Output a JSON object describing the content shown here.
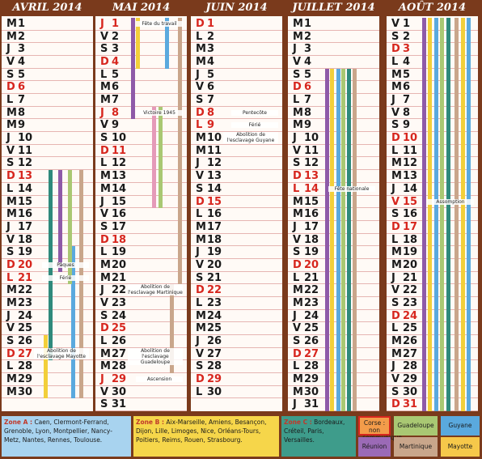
{
  "months": [
    {
      "title": "AVRIL 2014",
      "days": [
        {
          "d": "M",
          "n": 1
        },
        {
          "d": "M",
          "n": 2
        },
        {
          "d": "J",
          "n": 3
        },
        {
          "d": "V",
          "n": 4
        },
        {
          "d": "S",
          "n": 5
        },
        {
          "d": "D",
          "n": 6,
          "red": true
        },
        {
          "d": "L",
          "n": 7
        },
        {
          "d": "M",
          "n": 8
        },
        {
          "d": "M",
          "n": 9
        },
        {
          "d": "J",
          "n": 10
        },
        {
          "d": "V",
          "n": 11
        },
        {
          "d": "S",
          "n": 12
        },
        {
          "d": "D",
          "n": 13,
          "red": true
        },
        {
          "d": "L",
          "n": 14
        },
        {
          "d": "M",
          "n": 15
        },
        {
          "d": "M",
          "n": 16
        },
        {
          "d": "J",
          "n": 17
        },
        {
          "d": "V",
          "n": 18
        },
        {
          "d": "S",
          "n": 19
        },
        {
          "d": "D",
          "n": 20,
          "red": true,
          "note": "Pâques"
        },
        {
          "d": "L",
          "n": 21,
          "red": true,
          "note": "Férié"
        },
        {
          "d": "M",
          "n": 22
        },
        {
          "d": "M",
          "n": 23
        },
        {
          "d": "J",
          "n": 24
        },
        {
          "d": "V",
          "n": 25
        },
        {
          "d": "S",
          "n": 26
        },
        {
          "d": "D",
          "n": 27,
          "red": true,
          "note": "Abolition de l'esclavage Mayotte"
        },
        {
          "d": "L",
          "n": 28
        },
        {
          "d": "M",
          "n": 29
        },
        {
          "d": "M",
          "n": 30
        }
      ]
    },
    {
      "title": "MAI 2014",
      "days": [
        {
          "d": "J",
          "n": 1,
          "red": true,
          "note": "Fête du travail"
        },
        {
          "d": "V",
          "n": 2
        },
        {
          "d": "S",
          "n": 3
        },
        {
          "d": "D",
          "n": 4,
          "red": true
        },
        {
          "d": "L",
          "n": 5
        },
        {
          "d": "M",
          "n": 6
        },
        {
          "d": "M",
          "n": 7
        },
        {
          "d": "J",
          "n": 8,
          "red": true,
          "note": "Victoire 1945"
        },
        {
          "d": "V",
          "n": 9
        },
        {
          "d": "S",
          "n": 10
        },
        {
          "d": "D",
          "n": 11,
          "red": true
        },
        {
          "d": "L",
          "n": 12
        },
        {
          "d": "M",
          "n": 13
        },
        {
          "d": "M",
          "n": 14
        },
        {
          "d": "J",
          "n": 15
        },
        {
          "d": "V",
          "n": 16
        },
        {
          "d": "S",
          "n": 17
        },
        {
          "d": "D",
          "n": 18,
          "red": true
        },
        {
          "d": "L",
          "n": 19
        },
        {
          "d": "M",
          "n": 20
        },
        {
          "d": "M",
          "n": 21
        },
        {
          "d": "J",
          "n": 22,
          "note": "Abolition de l'esclavage Martinique"
        },
        {
          "d": "V",
          "n": 23
        },
        {
          "d": "S",
          "n": 24
        },
        {
          "d": "D",
          "n": 25,
          "red": true
        },
        {
          "d": "L",
          "n": 26
        },
        {
          "d": "M",
          "n": 27,
          "note": "Abolition de l'esclavage Guadeloupe"
        },
        {
          "d": "M",
          "n": 28
        },
        {
          "d": "J",
          "n": 29,
          "red": true,
          "note": "Ascension"
        },
        {
          "d": "V",
          "n": 30
        },
        {
          "d": "S",
          "n": 31
        }
      ]
    },
    {
      "title": "JUIN 2014",
      "days": [
        {
          "d": "D",
          "n": 1,
          "red": true
        },
        {
          "d": "L",
          "n": 2
        },
        {
          "d": "M",
          "n": 3
        },
        {
          "d": "M",
          "n": 4
        },
        {
          "d": "J",
          "n": 5
        },
        {
          "d": "V",
          "n": 6
        },
        {
          "d": "S",
          "n": 7
        },
        {
          "d": "D",
          "n": 8,
          "red": true,
          "note": "Pentecôte"
        },
        {
          "d": "L",
          "n": 9,
          "red": true,
          "note": "Férié"
        },
        {
          "d": "M",
          "n": 10,
          "note": "Abolition de l'esclavage Guyane"
        },
        {
          "d": "M",
          "n": 11
        },
        {
          "d": "J",
          "n": 12
        },
        {
          "d": "V",
          "n": 13
        },
        {
          "d": "S",
          "n": 14
        },
        {
          "d": "D",
          "n": 15,
          "red": true
        },
        {
          "d": "L",
          "n": 16
        },
        {
          "d": "M",
          "n": 17
        },
        {
          "d": "M",
          "n": 18
        },
        {
          "d": "J",
          "n": 19
        },
        {
          "d": "V",
          "n": 20
        },
        {
          "d": "S",
          "n": 21
        },
        {
          "d": "D",
          "n": 22,
          "red": true
        },
        {
          "d": "L",
          "n": 23
        },
        {
          "d": "M",
          "n": 24
        },
        {
          "d": "M",
          "n": 25
        },
        {
          "d": "J",
          "n": 26
        },
        {
          "d": "V",
          "n": 27
        },
        {
          "d": "S",
          "n": 28
        },
        {
          "d": "D",
          "n": 29,
          "red": true
        },
        {
          "d": "L",
          "n": 30
        }
      ]
    },
    {
      "title": "JUILLET 2014",
      "days": [
        {
          "d": "M",
          "n": 1
        },
        {
          "d": "M",
          "n": 2
        },
        {
          "d": "J",
          "n": 3
        },
        {
          "d": "V",
          "n": 4
        },
        {
          "d": "S",
          "n": 5
        },
        {
          "d": "D",
          "n": 6,
          "red": true
        },
        {
          "d": "L",
          "n": 7
        },
        {
          "d": "M",
          "n": 8
        },
        {
          "d": "M",
          "n": 9
        },
        {
          "d": "J",
          "n": 10
        },
        {
          "d": "V",
          "n": 11
        },
        {
          "d": "S",
          "n": 12
        },
        {
          "d": "D",
          "n": 13,
          "red": true
        },
        {
          "d": "L",
          "n": 14,
          "red": true,
          "note": "Fête nationale"
        },
        {
          "d": "M",
          "n": 15
        },
        {
          "d": "M",
          "n": 16
        },
        {
          "d": "J",
          "n": 17
        },
        {
          "d": "V",
          "n": 18
        },
        {
          "d": "S",
          "n": 19
        },
        {
          "d": "D",
          "n": 20,
          "red": true
        },
        {
          "d": "L",
          "n": 21
        },
        {
          "d": "M",
          "n": 22
        },
        {
          "d": "M",
          "n": 23
        },
        {
          "d": "J",
          "n": 24
        },
        {
          "d": "V",
          "n": 25
        },
        {
          "d": "S",
          "n": 26
        },
        {
          "d": "D",
          "n": 27,
          "red": true
        },
        {
          "d": "L",
          "n": 28
        },
        {
          "d": "M",
          "n": 29
        },
        {
          "d": "M",
          "n": 30
        },
        {
          "d": "J",
          "n": 31
        }
      ]
    },
    {
      "title": "AOÛT 2014",
      "days": [
        {
          "d": "V",
          "n": 1
        },
        {
          "d": "S",
          "n": 2
        },
        {
          "d": "D",
          "n": 3,
          "red": true
        },
        {
          "d": "L",
          "n": 4
        },
        {
          "d": "M",
          "n": 5
        },
        {
          "d": "M",
          "n": 6
        },
        {
          "d": "J",
          "n": 7
        },
        {
          "d": "V",
          "n": 8
        },
        {
          "d": "S",
          "n": 9
        },
        {
          "d": "D",
          "n": 10,
          "red": true
        },
        {
          "d": "L",
          "n": 11
        },
        {
          "d": "M",
          "n": 12
        },
        {
          "d": "M",
          "n": 13
        },
        {
          "d": "J",
          "n": 14
        },
        {
          "d": "V",
          "n": 15,
          "red": true,
          "note": "Assomption"
        },
        {
          "d": "S",
          "n": 16
        },
        {
          "d": "D",
          "n": 17,
          "red": true
        },
        {
          "d": "L",
          "n": 18
        },
        {
          "d": "M",
          "n": 19
        },
        {
          "d": "M",
          "n": 20
        },
        {
          "d": "J",
          "n": 21
        },
        {
          "d": "V",
          "n": 22
        },
        {
          "d": "S",
          "n": 23
        },
        {
          "d": "D",
          "n": 24,
          "red": true
        },
        {
          "d": "L",
          "n": 25
        },
        {
          "d": "M",
          "n": 26
        },
        {
          "d": "M",
          "n": 27
        },
        {
          "d": "J",
          "n": 28
        },
        {
          "d": "V",
          "n": 29
        },
        {
          "d": "S",
          "n": 30
        },
        {
          "d": "D",
          "n": 31,
          "red": true
        }
      ]
    }
  ],
  "legend": {
    "zones": [
      {
        "name": "Zone A :",
        "cities": "Caen, Clermont-Ferrand, Grenoble, Lyon, Montpellier, Nancy-Metz, Nantes, Rennes, Toulouse."
      },
      {
        "name": "Zone B :",
        "cities": "Aix-Marseille, Amiens, Besançon, Dijon, Lille, Limoges, Nice, Orléans-Tours, Poitiers, Reims, Rouen, Strasbourg."
      },
      {
        "name": "Zone C :",
        "cities": "Bordeaux, Créteil, Paris, Versailles."
      }
    ],
    "others": [
      "Corse : non communiqué",
      "Réunion",
      "Guadeloupe",
      "Martinique",
      "Guyane",
      "Mayotte"
    ]
  }
}
